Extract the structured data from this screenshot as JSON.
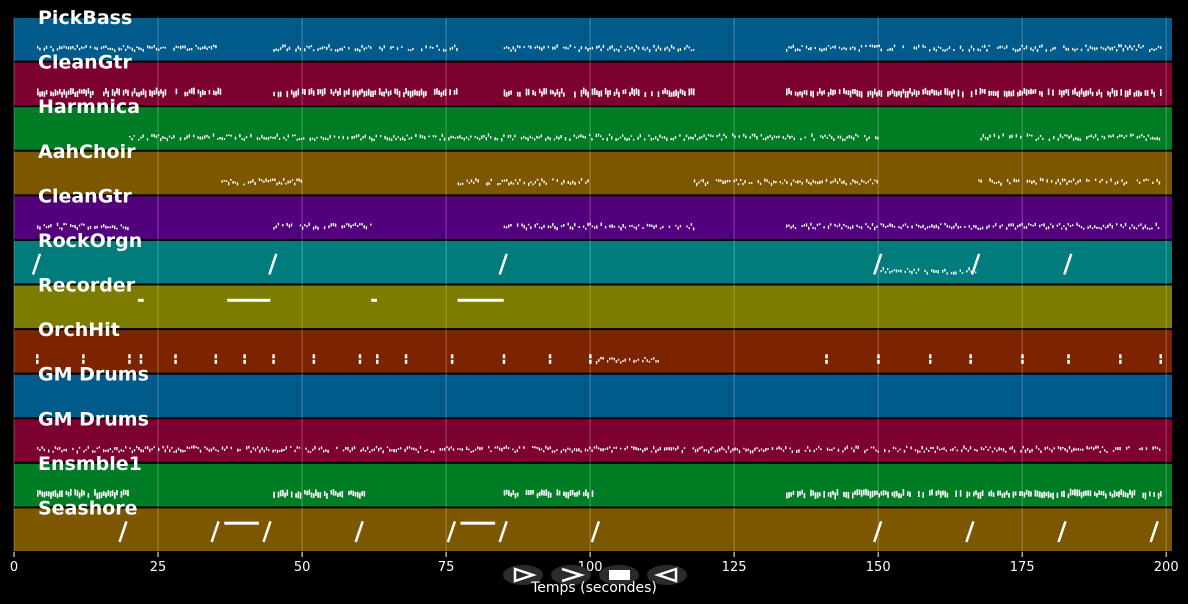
{
  "chart_data": {
    "type": "piano-roll",
    "xlabel": "Temps (secondes)",
    "xlim": [
      0,
      201
    ],
    "x_ticks": [
      0,
      25,
      50,
      75,
      100,
      125,
      150,
      175,
      200
    ],
    "grid": "vertical",
    "tracks": [
      {
        "label": "PickBass",
        "color": "#005b8c",
        "segments": [
          [
            4,
            35
          ],
          [
            45,
            62
          ],
          [
            63,
            77
          ],
          [
            85,
            118
          ],
          [
            134,
            199
          ]
        ],
        "note_style": "dots"
      },
      {
        "label": "CleanGtr",
        "color": "#7c0030",
        "segments": [
          [
            4,
            36
          ],
          [
            45,
            77
          ],
          [
            85,
            118
          ],
          [
            134,
            199
          ]
        ],
        "note_style": "bars"
      },
      {
        "label": "Harmnica",
        "color": "#007c24",
        "segments": [
          [
            20,
            150
          ],
          [
            167,
            199
          ]
        ],
        "note_style": "dots"
      },
      {
        "label": "AahChoir",
        "color": "#7c5700",
        "segments": [
          [
            36,
            50
          ],
          [
            77,
            100
          ],
          [
            118,
            150
          ],
          [
            167,
            199
          ]
        ],
        "note_style": "dots"
      },
      {
        "label": "CleanGtr",
        "color": "#53007c",
        "segments": [
          [
            4,
            20
          ],
          [
            45,
            62
          ],
          [
            85,
            118
          ],
          [
            134,
            199
          ]
        ],
        "note_style": "dots"
      },
      {
        "label": "RockOrgn",
        "color": "#007c7c",
        "segments": [
          [
            150,
            167
          ]
        ],
        "slides": [
          4,
          45,
          85,
          150,
          167,
          183
        ],
        "note_style": "dots"
      },
      {
        "label": "Recorder",
        "color": "#7c7c00",
        "segments": [],
        "long_notes": [
          [
            21.5,
            22.5
          ],
          [
            37,
            44.5
          ],
          [
            62,
            63
          ],
          [
            77,
            85
          ]
        ],
        "note_style": "long"
      },
      {
        "label": "OrchHit",
        "color": "#7c2400",
        "segments": [
          [
            101,
            112
          ]
        ],
        "hits": [
          4,
          12,
          20,
          22,
          28,
          35,
          40,
          45,
          52,
          60,
          63,
          68,
          76,
          85,
          93,
          100,
          141,
          150,
          159,
          166,
          175,
          183,
          192,
          199
        ],
        "note_style": "dots"
      },
      {
        "label": "GM Drums",
        "color": "#005b8c",
        "segments": [],
        "note_style": "none"
      },
      {
        "label": "GM Drums",
        "color": "#7c0030",
        "segments": [
          [
            4,
            199
          ]
        ],
        "note_style": "dots"
      },
      {
        "label": "Ensmble1",
        "color": "#007c24",
        "segments": [
          [
            4,
            20
          ],
          [
            45,
            61
          ],
          [
            85,
            101
          ],
          [
            134,
            199
          ]
        ],
        "note_style": "bars"
      },
      {
        "label": "Seashore",
        "color": "#7c5700",
        "segments": [],
        "slides": [
          19,
          35,
          44,
          60,
          76,
          85,
          101,
          150,
          166,
          182,
          198
        ],
        "long_notes": [
          [
            36.5,
            42.5
          ],
          [
            77.5,
            83.5
          ]
        ],
        "note_style": "long"
      }
    ]
  },
  "controls": {
    "play_icon": "play-icon",
    "forward_icon": "forward-icon",
    "stop_icon": "stop-icon",
    "rewind_icon": "rewind-icon"
  }
}
